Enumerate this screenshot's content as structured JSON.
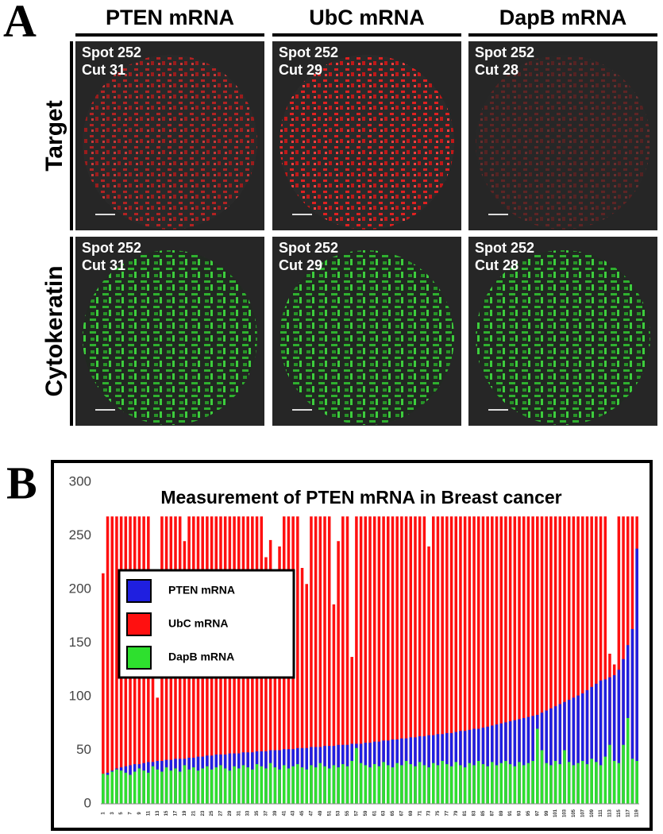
{
  "panel_a": {
    "label": "A",
    "columns": [
      "PTEN mRNA",
      "UbC mRNA",
      "DapB mRNA"
    ],
    "rows": [
      "Target",
      "Cytokeratin"
    ],
    "panels": [
      [
        [
          "Spot 252",
          "Cut 31"
        ],
        [
          "Spot 252",
          "Cut 29"
        ],
        [
          "Spot 252",
          "Cut 28"
        ]
      ],
      [
        [
          "Spot 252",
          "Cut 31"
        ],
        [
          "Spot 252",
          "Cut 29"
        ],
        [
          "Spot 252",
          "Cut 28"
        ]
      ]
    ]
  },
  "panel_b_label": "B",
  "chart_data": {
    "type": "bar",
    "title": "Measurement of PTEN mRNA in Breast cancer",
    "categories": [
      1,
      null,
      3,
      null,
      5,
      null,
      7,
      null,
      9,
      null,
      11,
      null,
      13,
      null,
      15,
      null,
      17,
      null,
      19,
      null,
      21,
      null,
      23,
      null,
      25,
      null,
      27,
      null,
      29,
      null,
      31,
      null,
      33,
      null,
      35,
      null,
      37,
      null,
      39,
      null,
      41,
      null,
      43,
      null,
      45,
      null,
      47,
      null,
      49,
      null,
      51,
      null,
      53,
      null,
      55,
      null,
      57,
      null,
      59,
      null,
      61,
      null,
      63,
      null,
      65,
      null,
      67,
      null,
      69,
      null,
      71,
      null,
      73,
      null,
      75,
      null,
      77,
      null,
      79,
      null,
      81,
      null,
      83,
      null,
      85,
      null,
      87,
      null,
      89,
      null,
      91,
      null,
      93,
      null,
      95,
      null,
      97,
      null,
      99,
      null,
      101,
      null,
      103,
      null,
      105,
      null,
      107,
      null,
      109,
      null,
      111,
      null,
      113,
      null,
      115,
      null,
      117,
      null,
      119
    ],
    "series": [
      {
        "name": "PTEN mRNA",
        "color": "#1f1fe0",
        "values": [
          28,
          29,
          31,
          33,
          34,
          35,
          36,
          37,
          37,
          38,
          39,
          39,
          40,
          40,
          41,
          41,
          42,
          42,
          42,
          43,
          43,
          44,
          44,
          45,
          45,
          46,
          46,
          46,
          47,
          47,
          47,
          48,
          48,
          48,
          49,
          49,
          49,
          50,
          50,
          50,
          51,
          51,
          51,
          52,
          52,
          52,
          53,
          53,
          53,
          54,
          54,
          54,
          55,
          55,
          55,
          56,
          56,
          56,
          57,
          57,
          58,
          58,
          59,
          59,
          60,
          60,
          61,
          61,
          62,
          62,
          63,
          63,
          64,
          64,
          65,
          65,
          66,
          66,
          67,
          68,
          68,
          69,
          70,
          70,
          71,
          72,
          73,
          74,
          75,
          76,
          77,
          78,
          79,
          80,
          81,
          82,
          83,
          85,
          87,
          89,
          91,
          93,
          95,
          97,
          99,
          101,
          103,
          106,
          109,
          112,
          115,
          116,
          118,
          120,
          125,
          135,
          148,
          163,
          238
        ]
      },
      {
        "name": "UbC mRNA",
        "color": "#ff1010",
        "values": [
          215,
          268,
          268,
          268,
          268,
          268,
          268,
          268,
          268,
          268,
          268,
          205,
          99,
          268,
          268,
          268,
          268,
          268,
          245,
          268,
          268,
          268,
          268,
          268,
          268,
          268,
          268,
          268,
          268,
          268,
          268,
          268,
          268,
          268,
          268,
          268,
          230,
          246,
          120,
          240,
          268,
          268,
          268,
          268,
          220,
          205,
          268,
          268,
          268,
          268,
          268,
          186,
          245,
          268,
          268,
          137,
          268,
          268,
          268,
          268,
          268,
          268,
          268,
          268,
          268,
          268,
          268,
          268,
          268,
          268,
          268,
          268,
          240,
          268,
          268,
          268,
          268,
          268,
          268,
          268,
          268,
          268,
          268,
          268,
          268,
          268,
          268,
          268,
          268,
          268,
          268,
          268,
          268,
          268,
          268,
          268,
          268,
          268,
          268,
          268,
          268,
          268,
          268,
          268,
          268,
          268,
          268,
          268,
          268,
          268,
          268,
          268,
          140,
          130,
          268,
          268,
          268,
          268,
          268
        ]
      },
      {
        "name": "DapB mRNA",
        "color": "#2ee02e",
        "values": [
          28,
          27,
          30,
          32,
          31,
          29,
          27,
          30,
          33,
          31,
          29,
          35,
          32,
          30,
          34,
          31,
          33,
          30,
          36,
          32,
          34,
          31,
          33,
          35,
          32,
          34,
          36,
          33,
          31,
          35,
          33,
          36,
          34,
          32,
          37,
          35,
          33,
          38,
          34,
          32,
          36,
          33,
          35,
          37,
          34,
          32,
          36,
          34,
          38,
          35,
          33,
          36,
          34,
          37,
          35,
          40,
          52,
          38,
          36,
          34,
          37,
          35,
          39,
          36,
          34,
          38,
          36,
          40,
          37,
          35,
          39,
          36,
          34,
          38,
          36,
          40,
          37,
          35,
          39,
          36,
          34,
          38,
          36,
          40,
          37,
          35,
          39,
          36,
          38,
          40,
          37,
          35,
          39,
          36,
          38,
          40,
          70,
          50,
          38,
          36,
          40,
          37,
          50,
          39,
          36,
          38,
          40,
          37,
          42,
          39,
          36,
          44,
          55,
          40,
          38,
          55,
          80,
          42,
          40
        ]
      }
    ],
    "ylim": [
      0,
      300
    ],
    "yticks": [
      0,
      50,
      100,
      150,
      200,
      250,
      300
    ],
    "grid": false,
    "legend": "upper left"
  }
}
